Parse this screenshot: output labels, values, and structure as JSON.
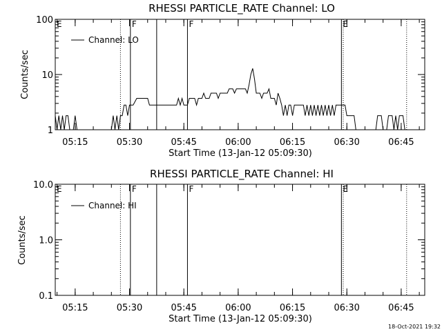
{
  "chart_data": [
    {
      "type": "line",
      "title": "RHESSI PARTICLE_RATE Channel: LO",
      "xlabel": "Start Time (13-Jan-12 05:09:30)",
      "ylabel": "Counts/sec",
      "yscale": "log",
      "ylim": [
        1,
        100
      ],
      "xlim": [
        "05:09:30",
        "06:51:30"
      ],
      "ytick_labels": [
        "1",
        "10",
        "100"
      ],
      "ytick_values": [
        1,
        10,
        100
      ],
      "xtick_labels": [
        "05:15",
        "05:30",
        "05:45",
        "06:00",
        "06:15",
        "06:30",
        "06:45"
      ],
      "legend": {
        "label": "Channel: LO",
        "placement": "top-left"
      },
      "series": [
        {
          "name": "Channel: LO",
          "points": [
            [
              "05:09:30",
              1.8
            ],
            [
              "05:10:00",
              1.0
            ],
            [
              "05:10:30",
              1.8
            ],
            [
              "05:11:00",
              1.0
            ],
            [
              "05:11:30",
              1.8
            ],
            [
              "05:12:00",
              1.0
            ],
            [
              "05:12:30",
              1.8
            ],
            [
              "05:13:00",
              1.8
            ],
            [
              "05:13:30",
              1.0
            ],
            [
              "05:14:30",
              1.0
            ],
            [
              "05:15:00",
              1.8
            ],
            [
              "05:15:30",
              1.0
            ],
            [
              "05:25:00",
              1.0
            ],
            [
              "05:25:30",
              1.8
            ],
            [
              "05:26:00",
              1.0
            ],
            [
              "05:26:30",
              1.8
            ],
            [
              "05:27:00",
              1.0
            ],
            [
              "05:27:30",
              1.8
            ],
            [
              "05:28:00",
              1.8
            ],
            [
              "05:28:30",
              2.8
            ],
            [
              "05:29:00",
              2.8
            ],
            [
              "05:29:30",
              1.8
            ],
            [
              "05:30:00",
              2.8
            ],
            [
              "05:31:00",
              2.8
            ],
            [
              "05:32:00",
              3.7
            ],
            [
              "05:35:00",
              3.7
            ],
            [
              "05:35:30",
              2.8
            ],
            [
              "05:43:00",
              2.8
            ],
            [
              "05:43:30",
              3.7
            ],
            [
              "05:44:00",
              2.8
            ],
            [
              "05:44:30",
              3.7
            ],
            [
              "05:45:00",
              2.8
            ],
            [
              "05:46:00",
              2.8
            ],
            [
              "05:46:30",
              3.7
            ],
            [
              "05:48:00",
              3.7
            ],
            [
              "05:48:30",
              2.8
            ],
            [
              "05:49:00",
              3.7
            ],
            [
              "05:50:00",
              3.7
            ],
            [
              "05:50:30",
              4.6
            ],
            [
              "05:51:00",
              3.7
            ],
            [
              "05:52:00",
              3.7
            ],
            [
              "05:52:30",
              4.6
            ],
            [
              "05:54:00",
              4.6
            ],
            [
              "05:54:30",
              3.7
            ],
            [
              "05:55:00",
              4.6
            ],
            [
              "05:57:00",
              4.6
            ],
            [
              "05:57:30",
              5.5
            ],
            [
              "05:58:30",
              5.5
            ],
            [
              "05:59:00",
              4.6
            ],
            [
              "05:59:30",
              5.5
            ],
            [
              "06:02:00",
              5.5
            ],
            [
              "06:02:30",
              4.6
            ],
            [
              "06:03:00",
              6.5
            ],
            [
              "06:03:30",
              10.1
            ],
            [
              "06:04:00",
              12.9
            ],
            [
              "06:04:30",
              8.3
            ],
            [
              "06:05:00",
              4.6
            ],
            [
              "06:06:00",
              4.6
            ],
            [
              "06:06:30",
              3.7
            ],
            [
              "06:07:00",
              4.6
            ],
            [
              "06:08:00",
              4.6
            ],
            [
              "06:08:30",
              5.5
            ],
            [
              "06:09:00",
              3.7
            ],
            [
              "06:10:00",
              3.7
            ],
            [
              "06:10:30",
              2.8
            ],
            [
              "06:11:00",
              4.6
            ],
            [
              "06:11:30",
              3.7
            ],
            [
              "06:12:00",
              2.8
            ],
            [
              "06:12:30",
              1.8
            ],
            [
              "06:13:00",
              2.8
            ],
            [
              "06:13:30",
              1.8
            ],
            [
              "06:14:00",
              2.8
            ],
            [
              "06:14:30",
              2.8
            ],
            [
              "06:15:00",
              1.8
            ],
            [
              "06:15:30",
              2.8
            ],
            [
              "06:18:00",
              2.8
            ],
            [
              "06:18:30",
              1.8
            ],
            [
              "06:19:00",
              2.8
            ],
            [
              "06:19:30",
              1.8
            ],
            [
              "06:20:00",
              2.8
            ],
            [
              "06:20:30",
              1.8
            ],
            [
              "06:21:00",
              2.8
            ],
            [
              "06:21:30",
              1.8
            ],
            [
              "06:22:00",
              2.8
            ],
            [
              "06:22:30",
              1.8
            ],
            [
              "06:23:00",
              2.8
            ],
            [
              "06:23:30",
              1.8
            ],
            [
              "06:24:00",
              2.8
            ],
            [
              "06:24:30",
              1.8
            ],
            [
              "06:25:00",
              2.8
            ],
            [
              "06:25:30",
              1.8
            ],
            [
              "06:26:00",
              2.8
            ],
            [
              "06:26:30",
              1.8
            ],
            [
              "06:27:00",
              2.8
            ],
            [
              "06:29:30",
              2.8
            ],
            [
              "06:30:00",
              1.8
            ],
            [
              "06:32:00",
              1.8
            ],
            [
              "06:32:30",
              1.0
            ],
            [
              "06:38:00",
              1.0
            ],
            [
              "06:38:30",
              1.8
            ],
            [
              "06:39:30",
              1.8
            ],
            [
              "06:40:00",
              1.0
            ],
            [
              "06:41:00",
              1.0
            ],
            [
              "06:41:30",
              1.8
            ],
            [
              "06:42:30",
              1.8
            ],
            [
              "06:43:00",
              1.0
            ],
            [
              "06:43:30",
              1.8
            ],
            [
              "06:44:00",
              1.0
            ],
            [
              "06:44:30",
              1.8
            ],
            [
              "06:45:30",
              1.8
            ],
            [
              "06:46:00",
              1.0
            ]
          ]
        }
      ],
      "markers": [
        {
          "time": "05:27:30",
          "style": "dotted",
          "label": ""
        },
        {
          "time": "05:30:15",
          "style": "solid",
          "label": "F"
        },
        {
          "time": "05:37:30",
          "style": "solid",
          "label": ""
        },
        {
          "time": "05:46:00",
          "style": "solid",
          "label": "F"
        },
        {
          "time": "06:28:30",
          "style": "solid",
          "label": "E"
        },
        {
          "time": "06:29:00",
          "style": "dotted",
          "label": ""
        },
        {
          "time": "06:46:30",
          "style": "dotted",
          "label": ""
        }
      ],
      "corner_label": "E"
    },
    {
      "type": "line",
      "title": "RHESSI PARTICLE_RATE Channel: HI",
      "xlabel": "Start Time (13-Jan-12 05:09:30)",
      "ylabel": "Counts/sec",
      "yscale": "log",
      "ylim": [
        0.1,
        10
      ],
      "xlim": [
        "05:09:30",
        "06:51:30"
      ],
      "ytick_labels": [
        "0.1",
        "1.0",
        "10.0"
      ],
      "ytick_values": [
        0.1,
        1,
        10
      ],
      "xtick_labels": [
        "05:15",
        "05:30",
        "05:45",
        "06:00",
        "06:15",
        "06:30",
        "06:45"
      ],
      "legend": {
        "label": "Channel: HI",
        "placement": "top-left"
      },
      "series": [
        {
          "name": "Channel: HI",
          "points": []
        }
      ],
      "markers": [
        {
          "time": "05:27:30",
          "style": "dotted",
          "label": ""
        },
        {
          "time": "05:30:15",
          "style": "solid",
          "label": "F"
        },
        {
          "time": "05:37:30",
          "style": "solid",
          "label": ""
        },
        {
          "time": "05:46:00",
          "style": "solid",
          "label": "F"
        },
        {
          "time": "06:28:30",
          "style": "solid",
          "label": "E"
        },
        {
          "time": "06:29:00",
          "style": "dotted",
          "label": ""
        },
        {
          "time": "06:46:30",
          "style": "dotted",
          "label": ""
        }
      ],
      "corner_label": "E"
    }
  ],
  "footer": {
    "stamp": "18-Oct-2021 19:32"
  },
  "colors": {
    "background": "#ffffff",
    "ink": "#000000"
  }
}
